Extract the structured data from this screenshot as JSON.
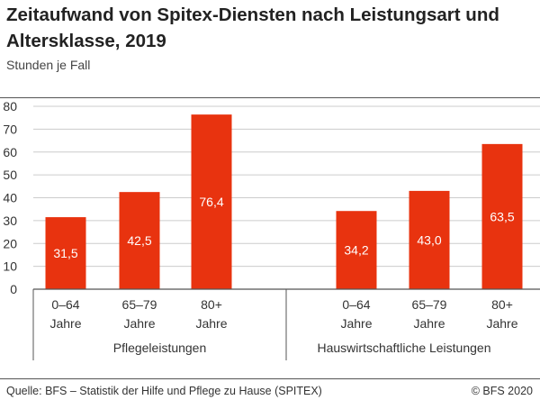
{
  "header": {
    "title": "Zeitaufwand von Spitex-Diensten nach Leistungsart und Altersklasse, 2019",
    "subtitle": "Stunden je Fall"
  },
  "footer": {
    "source": "Quelle: BFS – Statistik der Hilfe und Pflege zu Hause (SPITEX)",
    "copyright": "© BFS 2020"
  },
  "colors": {
    "bar": "#e8330f",
    "bar_label": "#ffffff",
    "axis": "#555555",
    "grid": "#cccccc",
    "text": "#333333"
  },
  "chart_data": {
    "type": "bar",
    "title": "Zeitaufwand von Spitex-Diensten nach Leistungsart und Altersklasse, 2019",
    "ylabel": "Stunden je Fall",
    "ylim": [
      0,
      80
    ],
    "yticks": [
      0,
      10,
      20,
      30,
      40,
      50,
      60,
      70,
      80
    ],
    "grid": true,
    "groups": [
      {
        "name": "Pflegeleistungen",
        "categories": [
          [
            "0–64",
            "Jahre"
          ],
          [
            "65–79",
            "Jahre"
          ],
          [
            "80+",
            "Jahre"
          ]
        ],
        "values": [
          31.5,
          42.5,
          76.4
        ],
        "labels": [
          "31,5",
          "42,5",
          "76,4"
        ]
      },
      {
        "name": "Hauswirtschaftliche Leistungen",
        "categories": [
          [
            "0–64",
            "Jahre"
          ],
          [
            "65–79",
            "Jahre"
          ],
          [
            "80+",
            "Jahre"
          ]
        ],
        "values": [
          34.2,
          43.0,
          63.5
        ],
        "labels": [
          "34,2",
          "43,0",
          "63,5"
        ]
      }
    ]
  }
}
